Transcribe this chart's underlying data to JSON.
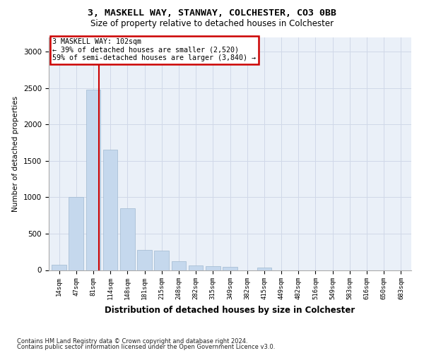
{
  "title1": "3, MASKELL WAY, STANWAY, COLCHESTER, CO3 0BB",
  "title2": "Size of property relative to detached houses in Colchester",
  "xlabel": "Distribution of detached houses by size in Colchester",
  "ylabel": "Number of detached properties",
  "categories": [
    "14sqm",
    "47sqm",
    "81sqm",
    "114sqm",
    "148sqm",
    "181sqm",
    "215sqm",
    "248sqm",
    "282sqm",
    "315sqm",
    "349sqm",
    "382sqm",
    "415sqm",
    "449sqm",
    "482sqm",
    "516sqm",
    "549sqm",
    "583sqm",
    "616sqm",
    "650sqm",
    "683sqm"
  ],
  "values": [
    75,
    1000,
    2480,
    1650,
    850,
    275,
    270,
    120,
    60,
    55,
    40,
    0,
    30,
    0,
    0,
    0,
    0,
    0,
    0,
    0,
    0
  ],
  "bar_color": "#c5d8ed",
  "bar_edge_color": "#a0b8d0",
  "grid_color": "#d0d8e8",
  "bg_color": "#eaf0f8",
  "annotation_text_line1": "3 MASKELL WAY: 102sqm",
  "annotation_text_line2": "← 39% of detached houses are smaller (2,520)",
  "annotation_text_line3": "59% of semi-detached houses are larger (3,840) →",
  "vline_color": "#cc0000",
  "vline_x": 2.35,
  "ylim": [
    0,
    3200
  ],
  "yticks": [
    0,
    500,
    1000,
    1500,
    2000,
    2500,
    3000
  ],
  "footer1": "Contains HM Land Registry data © Crown copyright and database right 2024.",
  "footer2": "Contains public sector information licensed under the Open Government Licence v3.0."
}
